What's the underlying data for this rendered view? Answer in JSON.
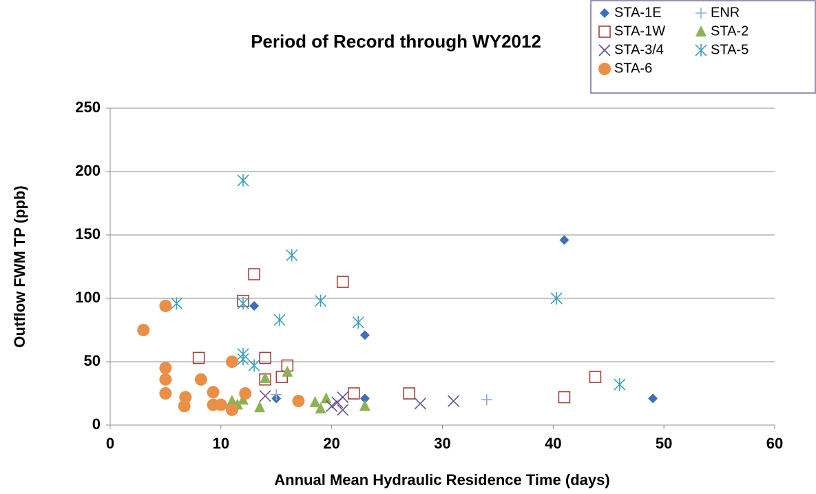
{
  "chart_data": {
    "type": "scatter",
    "title": "Period of Record through WY2012",
    "x_label": "Annual Mean Hydraulic Residence Time (days)",
    "y_label": "Outflow FWM TP (ppb)",
    "xlim": [
      0,
      60
    ],
    "xticks": [
      0,
      10,
      20,
      30,
      40,
      50,
      60
    ],
    "ylim": [
      0,
      250
    ],
    "yticks": [
      0,
      50,
      100,
      150,
      200,
      250
    ],
    "grid": true,
    "legend": "top-right",
    "series": [
      {
        "name": "STA-1E",
        "color": "#3f6fb5",
        "marker": "diamond",
        "x": [
          13,
          41,
          23,
          23,
          15,
          49
        ],
        "values": [
          94,
          146,
          71,
          21,
          21,
          21
        ]
      },
      {
        "name": "ENR",
        "color": "#8eaad8",
        "marker": "plus",
        "x": [
          15,
          34
        ],
        "values": [
          24,
          20
        ]
      },
      {
        "name": "STA-1W",
        "color": "#a0403e",
        "marker": "square",
        "x": [
          13,
          21,
          12,
          8,
          14,
          16,
          15.5,
          14,
          22,
          27,
          41,
          43.8
        ],
        "values": [
          119,
          113,
          98,
          53,
          53,
          47,
          38,
          36,
          25,
          25,
          22,
          38
        ]
      },
      {
        "name": "STA-2",
        "color": "#8db254",
        "marker": "triangle",
        "x": [
          14,
          16,
          11,
          12,
          11.5,
          13.5,
          18.5,
          19.5,
          19,
          23
        ],
        "values": [
          37,
          42,
          19,
          20,
          16,
          14,
          18,
          21,
          13,
          15
        ]
      },
      {
        "name": "STA-3/4",
        "color": "#6a4f8c",
        "marker": "x",
        "x": [
          14,
          21,
          20,
          21,
          20.5,
          28,
          31
        ],
        "values": [
          23,
          22,
          15,
          12,
          18,
          17,
          19
        ]
      },
      {
        "name": "STA-5",
        "color": "#3ea2b8",
        "marker": "star",
        "x": [
          6,
          12,
          12,
          16.4,
          15.3,
          19,
          22.4,
          40.3,
          46,
          12,
          12,
          13
        ],
        "values": [
          96,
          193,
          96,
          134,
          83,
          98,
          81,
          100,
          32,
          56,
          52,
          47
        ]
      },
      {
        "name": "STA-6",
        "color": "#ea8f48",
        "marker": "circle",
        "x": [
          3,
          5,
          5,
          5,
          5,
          6.7,
          6.8,
          8.2,
          9.3,
          9.3,
          10,
          11,
          11,
          12.2,
          17
        ],
        "values": [
          75,
          94,
          45,
          36,
          25,
          15,
          22,
          36,
          26,
          16,
          16,
          12,
          50,
          25,
          19
        ]
      }
    ]
  }
}
